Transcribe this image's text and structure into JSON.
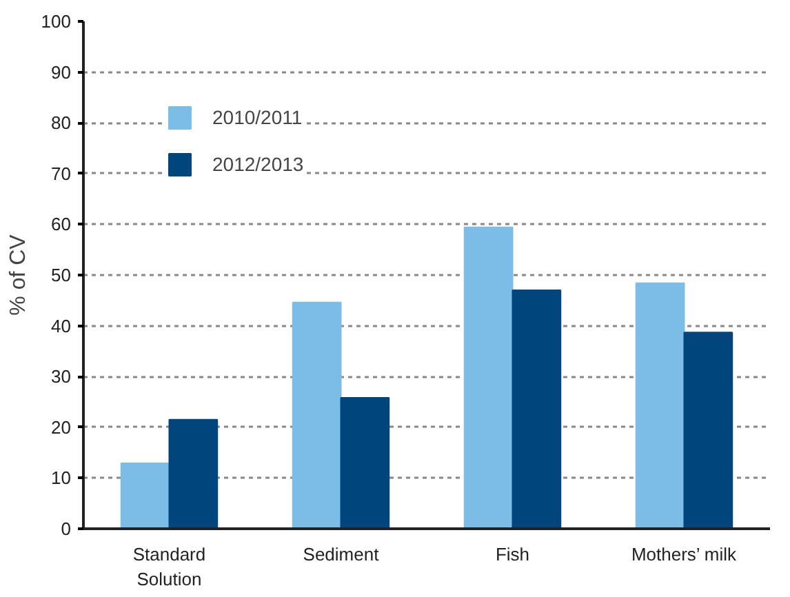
{
  "chart_data": {
    "type": "bar",
    "ylabel": "% of CV",
    "categories": [
      "Standard Solution",
      "Sediment",
      "Fish",
      "Mothers’ milk"
    ],
    "series": [
      {
        "name": "2010/2011",
        "color": "#7bbde6",
        "values": [
          12.9,
          44.6,
          59.4,
          48.4
        ]
      },
      {
        "name": "2012/2013",
        "color": "#00457c",
        "values": [
          21.5,
          25.8,
          47.0,
          38.7
        ]
      }
    ],
    "ylim": [
      0,
      100
    ],
    "yticks": [
      0,
      10,
      20,
      30,
      40,
      50,
      60,
      70,
      80,
      90,
      100
    ],
    "grid": "y",
    "legend": "top left"
  }
}
